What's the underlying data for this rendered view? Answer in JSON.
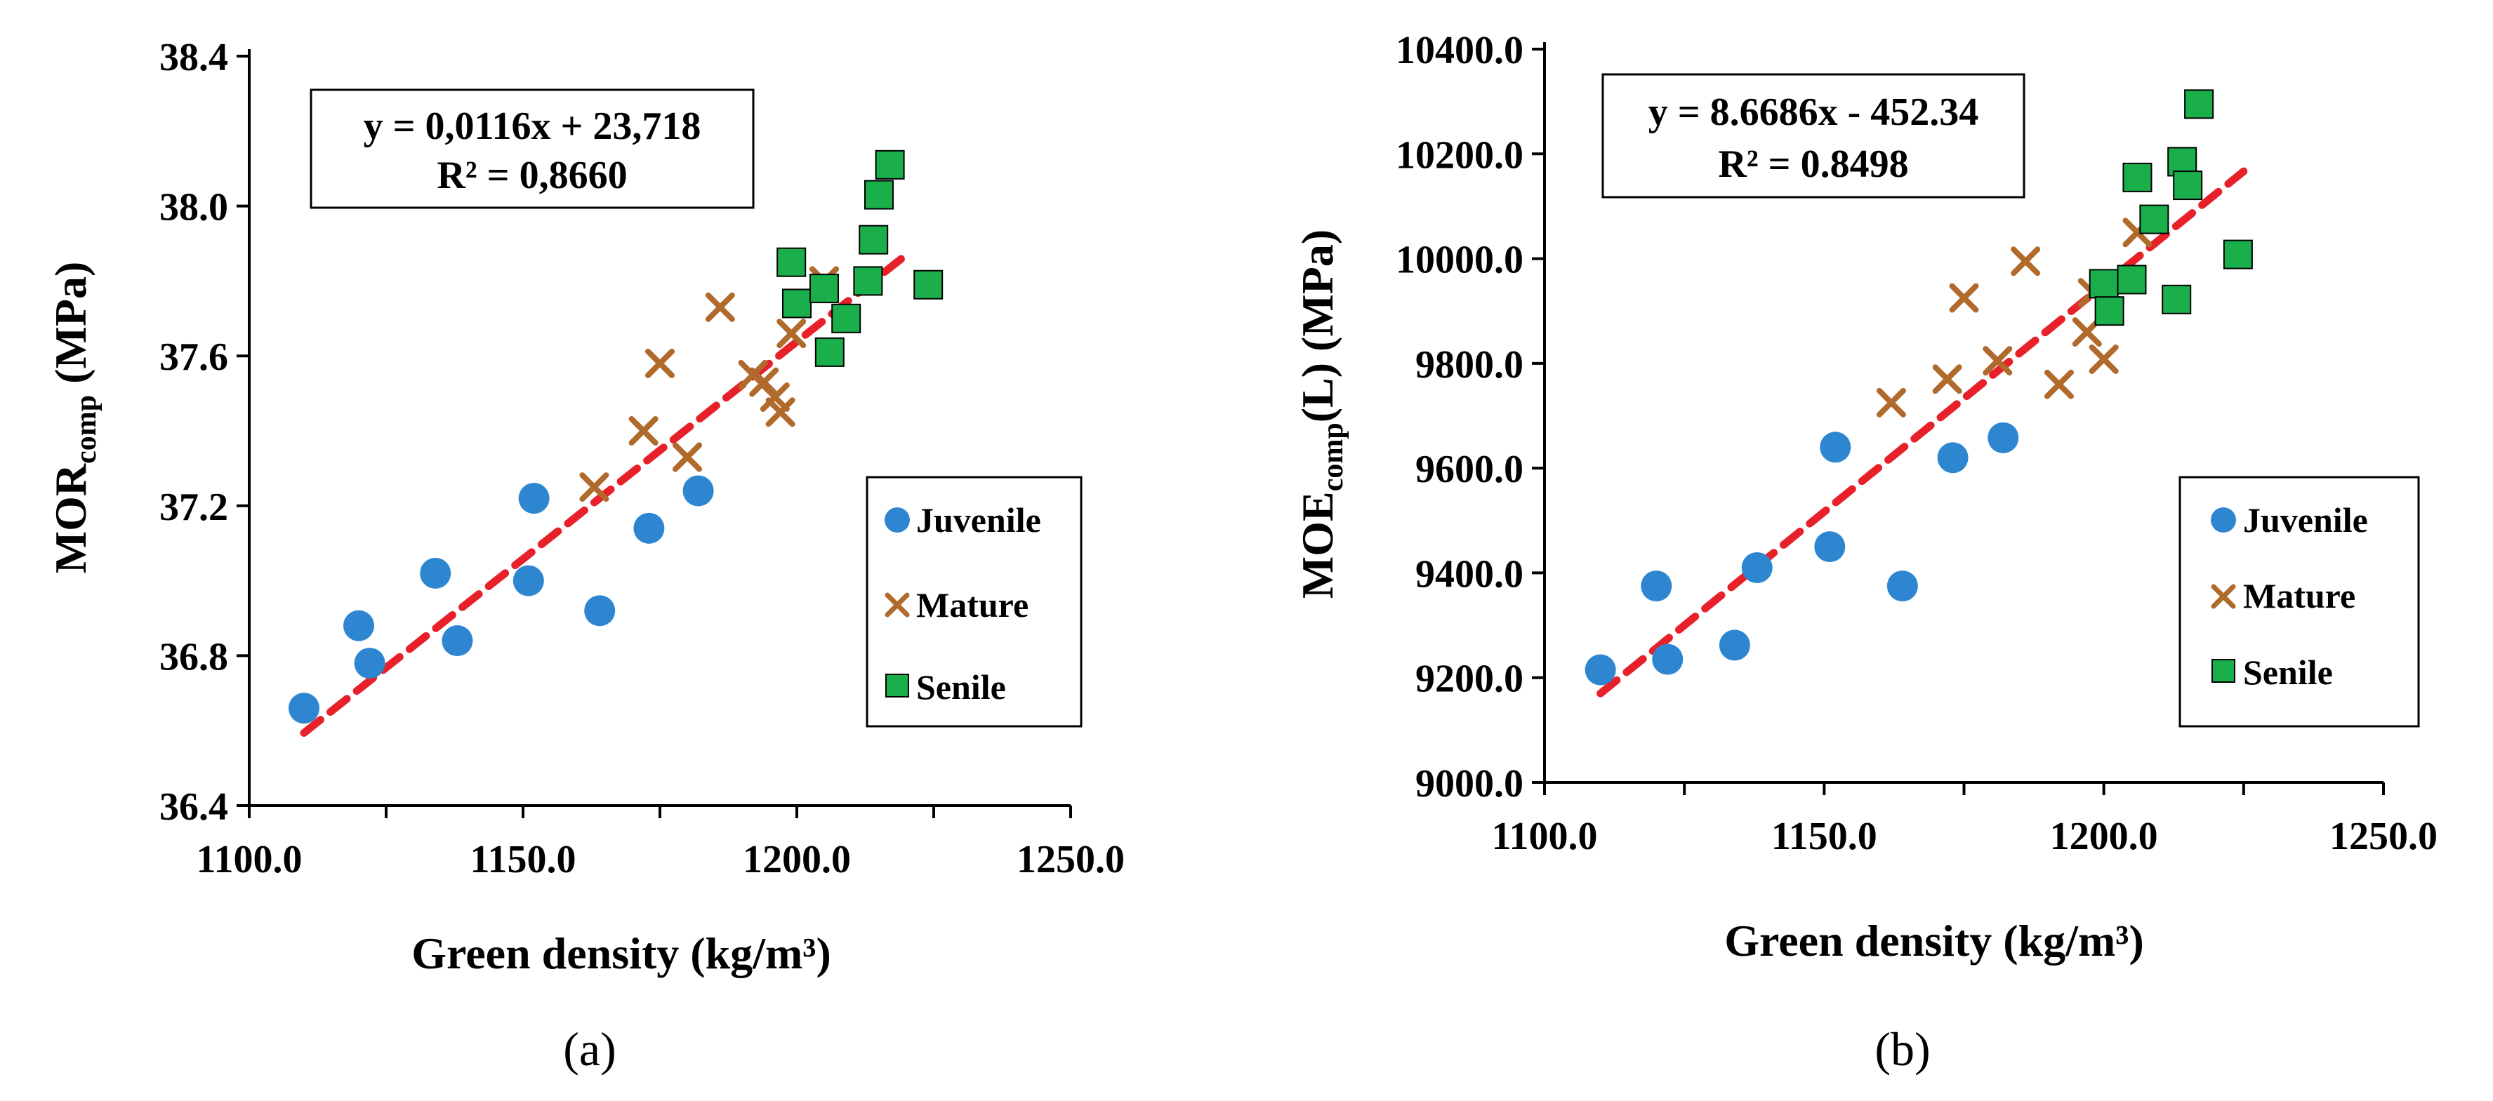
{
  "chart_data": [
    {
      "type": "scatter",
      "panel_label": "(a)",
      "title": "",
      "xlabel": "Green density (kg/m³)",
      "ylabel_main": "MOR",
      "ylabel_sub": "comp",
      "ylabel_unit": "(MPa)",
      "xlim": [
        1100,
        1250
      ],
      "ylim": [
        36.4,
        38.4
      ],
      "xticks": [
        "1100.0",
        "1150.0",
        "1200.0",
        "1250.0"
      ],
      "xtick_values": [
        1100,
        1150,
        1200,
        1250
      ],
      "yticks": [
        "36.4",
        "36.8",
        "37.2",
        "37.6",
        "38.0",
        "38.4"
      ],
      "ytick_values": [
        36.4,
        36.8,
        37.2,
        37.6,
        38.0,
        38.4
      ],
      "grid": false,
      "legend_position": "right",
      "equation": "y = 0,0116x + 23,718",
      "r_squared": "R² = 0,8660",
      "trendline": {
        "slope": 0.0116,
        "intercept": 23.718,
        "x_range": [
          1110,
          1220
        ]
      },
      "series": [
        {
          "name": "Juvenile",
          "marker": "circle",
          "color": "#2E86D1",
          "x": [
            1110,
            1120,
            1122,
            1134,
            1138,
            1151,
            1152,
            1164,
            1173,
            1182
          ],
          "y": [
            36.66,
            36.88,
            36.78,
            37.02,
            36.84,
            37.0,
            37.22,
            36.92,
            37.14,
            37.24
          ]
        },
        {
          "name": "Mature",
          "marker": "x",
          "color": "#B06A2C",
          "x": [
            1163,
            1172,
            1175,
            1180,
            1186,
            1192,
            1194,
            1196,
            1197,
            1199,
            1205
          ],
          "y": [
            37.25,
            37.4,
            37.58,
            37.33,
            37.73,
            37.55,
            37.53,
            37.49,
            37.45,
            37.66,
            37.8
          ]
        },
        {
          "name": "Senile",
          "marker": "square",
          "color": "#1AAF4B",
          "x": [
            1199,
            1200,
            1205,
            1206,
            1209,
            1213,
            1214,
            1215,
            1217,
            1224
          ],
          "y": [
            37.85,
            37.74,
            37.78,
            37.61,
            37.7,
            37.8,
            37.91,
            38.03,
            38.11,
            37.79
          ]
        }
      ]
    },
    {
      "type": "scatter",
      "panel_label": "(b)",
      "title": "",
      "xlabel": "Green density (kg/m³)",
      "ylabel_main": "MOE",
      "ylabel_sub": "comp",
      "ylabel_unit": "(L)  (MPa)",
      "xlim": [
        1100,
        1250
      ],
      "ylim": [
        9000,
        10400
      ],
      "xticks": [
        "1100.0",
        "1150.0",
        "1200.0",
        "1250.0"
      ],
      "xtick_values": [
        1100,
        1150,
        1200,
        1250
      ],
      "yticks": [
        "9000.0",
        "9200.0",
        "9400.0",
        "9600.0",
        "9800.0",
        "10000.0",
        "10200.0",
        "10400.0"
      ],
      "ytick_values": [
        9000,
        9200,
        9400,
        9600,
        9800,
        10000,
        10200,
        10400
      ],
      "grid": false,
      "legend_position": "right",
      "equation": "y = 8.6686x - 452.34",
      "r_squared": "R² = 0.8498",
      "trendline": {
        "slope": 8.6686,
        "intercept": -452.34,
        "x_range": [
          1110,
          1225
        ]
      },
      "series": [
        {
          "name": "Juvenile",
          "marker": "circle",
          "color": "#2E86D1",
          "x": [
            1110,
            1120,
            1122,
            1134,
            1138,
            1151,
            1152,
            1164,
            1173,
            1182
          ],
          "y": [
            9215,
            9375,
            9235,
            9262,
            9410,
            9450,
            9640,
            9375,
            9620,
            9658
          ]
        },
        {
          "name": "Mature",
          "marker": "x",
          "color": "#B06A2C",
          "x": [
            1162,
            1172,
            1175,
            1181,
            1186,
            1192,
            1197,
            1198,
            1200,
            1206
          ],
          "y": [
            9725,
            9770,
            9925,
            9805,
            9995,
            9760,
            9860,
            9935,
            9808,
            10050
          ]
        },
        {
          "name": "Senile",
          "marker": "square",
          "color": "#1AAF4B",
          "x": [
            1200,
            1201,
            1205,
            1206,
            1209,
            1213,
            1214,
            1215,
            1217,
            1224
          ],
          "y": [
            9952,
            9900,
            9960,
            10155,
            10075,
            9922,
            10185,
            10140,
            10295,
            10008
          ]
        }
      ]
    }
  ]
}
